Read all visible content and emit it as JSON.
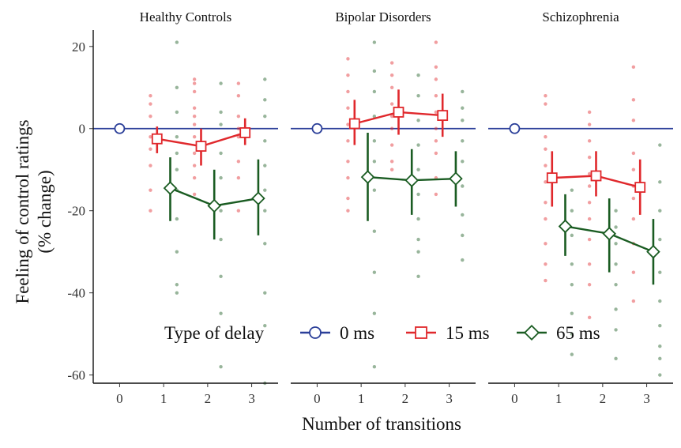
{
  "chart_data": {
    "type": "line",
    "xlabel": "Number of transitions",
    "ylabel_line1": "Feeling of control ratings",
    "ylabel_line2": "(% change)",
    "ylim": [
      -62,
      24
    ],
    "yticks": [
      20,
      0,
      -20,
      -40,
      -60
    ],
    "ytick_labels": [
      "20",
      "0",
      "-20",
      "-40",
      "-60"
    ],
    "xlim": [
      -0.6,
      3.6
    ],
    "xticks": [
      0,
      1,
      2,
      3
    ],
    "xtick_labels": [
      "0",
      "1",
      "2",
      "3"
    ],
    "grid": false,
    "legend": {
      "title": "Type of delay",
      "placement": "bottom-inside",
      "entries": [
        "0 ms",
        "15 ms",
        "65 ms"
      ]
    },
    "series": [
      {
        "name": "0 ms",
        "color": "#2b3f99",
        "marker": "circle"
      },
      {
        "name": "15 ms",
        "color": "#e0282c",
        "marker": "square"
      },
      {
        "name": "65 ms",
        "color": "#1a5c22",
        "marker": "diamond"
      }
    ],
    "panels": [
      {
        "title": "Healthy Controls",
        "series": [
          {
            "name": "0 ms",
            "x": [
              0
            ],
            "y": [
              0
            ],
            "err_low": [
              0
            ],
            "err_high": [
              0
            ]
          },
          {
            "name": "15 ms",
            "x": [
              0.85,
              1.85,
              2.85
            ],
            "y": [
              -2.5,
              -4.3,
              -1.0
            ],
            "err_low": [
              -6.0,
              -9.0,
              -4.0
            ],
            "err_high": [
              0.5,
              0.0,
              2.5
            ]
          },
          {
            "name": "65 ms",
            "x": [
              1.15,
              2.15,
              3.15
            ],
            "y": [
              -14.5,
              -18.8,
              -17.0
            ],
            "err_low": [
              -22.5,
              -27.0,
              -26.0
            ],
            "err_high": [
              -7.0,
              -10.0,
              -7.5
            ]
          }
        ],
        "raw_points": {
          "15 ms": [
            {
              "x": 0.7,
              "y": [
                8,
                6,
                3,
                -2,
                -5,
                -9,
                -15,
                -20
              ]
            },
            {
              "x": 1.7,
              "y": [
                12,
                11,
                9,
                5,
                3,
                1,
                -2,
                -6,
                -9,
                -12,
                -16
              ]
            },
            {
              "x": 2.7,
              "y": [
                11,
                8,
                3,
                0,
                -2,
                -8,
                -12,
                -20
              ]
            }
          ],
          "65 ms": [
            {
              "x": 1.3,
              "y": [
                21,
                10,
                4,
                -2,
                -6,
                -10,
                -15,
                -22,
                -30,
                -38,
                -40
              ]
            },
            {
              "x": 2.3,
              "y": [
                11,
                4,
                1,
                -6,
                -12,
                -20,
                -27,
                -36,
                -45,
                -58
              ]
            },
            {
              "x": 3.3,
              "y": [
                12,
                7,
                3,
                -3,
                -9,
                -15,
                -20,
                -28,
                -40,
                -48,
                -62
              ]
            }
          ]
        }
      },
      {
        "title": "Bipolar Disorders",
        "series": [
          {
            "name": "0 ms",
            "x": [
              0
            ],
            "y": [
              0
            ],
            "err_low": [
              0
            ],
            "err_high": [
              0
            ]
          },
          {
            "name": "15 ms",
            "x": [
              0.85,
              1.85,
              2.85
            ],
            "y": [
              1.2,
              4.0,
              3.2
            ],
            "err_low": [
              -4.0,
              -1.5,
              -2.0
            ],
            "err_high": [
              7.0,
              9.5,
              8.5
            ]
          },
          {
            "name": "65 ms",
            "x": [
              1.15,
              2.15,
              3.15
            ],
            "y": [
              -11.8,
              -12.6,
              -12.2
            ],
            "err_low": [
              -22.5,
              -21.0,
              -19.0
            ],
            "err_high": [
              -1.0,
              -5.0,
              -5.5
            ]
          }
        ],
        "raw_points": {
          "15 ms": [
            {
              "x": 0.7,
              "y": [
                17,
                13,
                9,
                5,
                1,
                -3,
                -8,
                -12,
                -17,
                -20
              ]
            },
            {
              "x": 1.7,
              "y": [
                16,
                13,
                10,
                6,
                3,
                0,
                -4,
                -8,
                -10
              ]
            },
            {
              "x": 2.7,
              "y": [
                21,
                15,
                12,
                8,
                4,
                0,
                -3,
                -6,
                -12,
                -16
              ]
            }
          ],
          "65 ms": [
            {
              "x": 1.3,
              "y": [
                21,
                14,
                9,
                3,
                -3,
                -8,
                -15,
                -25,
                -35,
                -45,
                -58
              ]
            },
            {
              "x": 2.3,
              "y": [
                13,
                8,
                2,
                -4,
                -10,
                -16,
                -22,
                -27,
                -30,
                -36
              ]
            },
            {
              "x": 3.3,
              "y": [
                9,
                5,
                2,
                -3,
                -8,
                -14,
                -21,
                -26,
                -32
              ]
            }
          ]
        }
      },
      {
        "title": "Schizophrenia",
        "series": [
          {
            "name": "0 ms",
            "x": [
              0
            ],
            "y": [
              0
            ],
            "err_low": [
              0
            ],
            "err_high": [
              0
            ]
          },
          {
            "name": "15 ms",
            "x": [
              0.85,
              1.85,
              2.85
            ],
            "y": [
              -12.0,
              -11.5,
              -14.3
            ],
            "err_low": [
              -19.0,
              -16.5,
              -21.0
            ],
            "err_high": [
              -5.5,
              -5.5,
              -7.5
            ]
          },
          {
            "name": "65 ms",
            "x": [
              1.15,
              2.15,
              3.15
            ],
            "y": [
              -23.8,
              -25.6,
              -30.0
            ],
            "err_low": [
              -31.0,
              -35.0,
              -38.0
            ],
            "err_high": [
              -16.0,
              -17.0,
              -22.0
            ]
          }
        ],
        "raw_points": {
          "15 ms": [
            {
              "x": 0.7,
              "y": [
                8,
                6,
                -2,
                -5,
                -9,
                -13,
                -18,
                -22,
                -28,
                -33,
                -37
              ]
            },
            {
              "x": 1.7,
              "y": [
                4,
                1,
                -3,
                -7,
                -11,
                -14,
                -18,
                -22,
                -27,
                -33,
                -38,
                -46
              ]
            },
            {
              "x": 2.7,
              "y": [
                15,
                7,
                2,
                -6,
                -10,
                -14,
                -17,
                -22,
                -28,
                -35,
                -42
              ]
            }
          ],
          "65 ms": [
            {
              "x": 1.3,
              "y": [
                -15,
                -20,
                -26,
                -33,
                -38,
                -45,
                -50,
                -55
              ]
            },
            {
              "x": 2.3,
              "y": [
                -20,
                -24,
                -28,
                -33,
                -38,
                -44,
                -49,
                -56
              ]
            },
            {
              "x": 3.3,
              "y": [
                -4,
                -13,
                -20,
                -27,
                -35,
                -42,
                -48,
                -53,
                -56,
                -60
              ]
            }
          ]
        }
      }
    ]
  }
}
